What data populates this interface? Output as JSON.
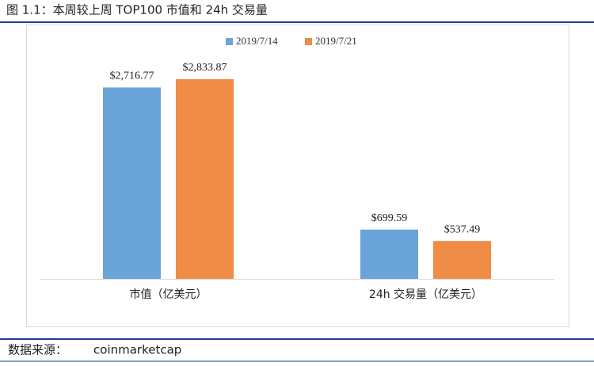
{
  "header": {
    "title": "图 1.1：本周较上周 TOP100 市值和 24h 交易量"
  },
  "chart_data": {
    "type": "bar",
    "categories": [
      "市值（亿美元）",
      "24h 交易量（亿美元）"
    ],
    "series": [
      {
        "name": "2019/7/14",
        "color": "#6aa4d9",
        "values": [
          2716.77,
          699.59
        ],
        "value_labels": [
          "$2,716.77",
          "$699.59"
        ]
      },
      {
        "name": "2019/7/21",
        "color": "#ef8c46",
        "values": [
          2833.87,
          537.49
        ],
        "value_labels": [
          "$2,833.87",
          "$537.49"
        ]
      }
    ],
    "legend": "top"
  },
  "footer": {
    "source_label": "数据来源：",
    "source": "coinmarketcap"
  }
}
